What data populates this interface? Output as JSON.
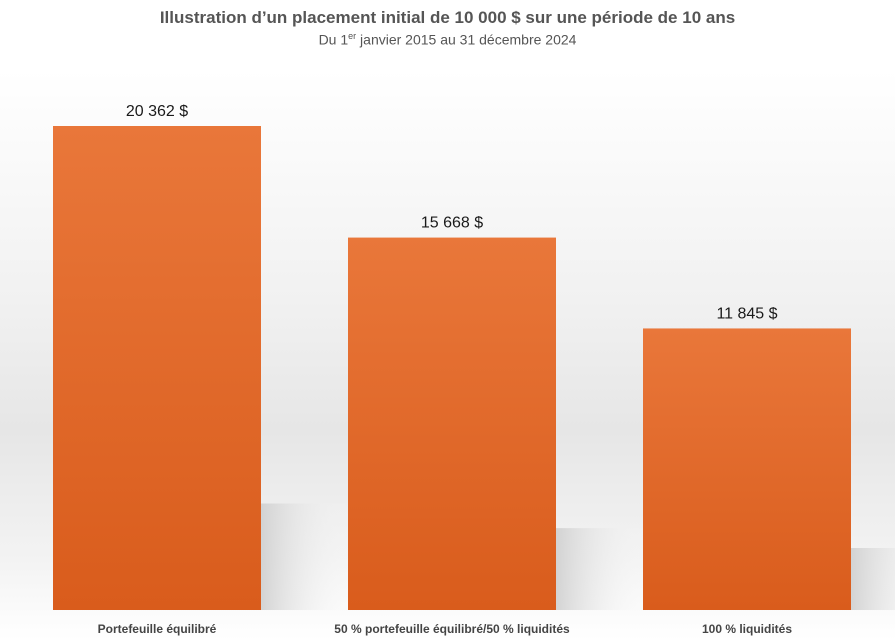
{
  "chart_data": {
    "type": "bar",
    "title": "Illustration d’un placement initial de 10 000 $ sur une période de 10 ans",
    "subtitle": {
      "prefix": "Du 1",
      "sup": "er",
      "suffix": " janvier 2015 au 31 décembre 2024"
    },
    "categories": [
      "Portefeuille équilibré",
      "50 % portefeuille équilibré/50 % liquidités",
      "100 % liquidités"
    ],
    "values": [
      20362,
      15668,
      11845
    ],
    "value_labels": [
      "20 362  $",
      "15 668  $",
      "11 845  $"
    ],
    "xlabel": "",
    "ylabel": "",
    "grid": false,
    "colors": {
      "bar_top": "#e9773a",
      "bar_bottom": "#d95c1c",
      "text": "#444444",
      "value_text": "#1a1a1a"
    }
  }
}
